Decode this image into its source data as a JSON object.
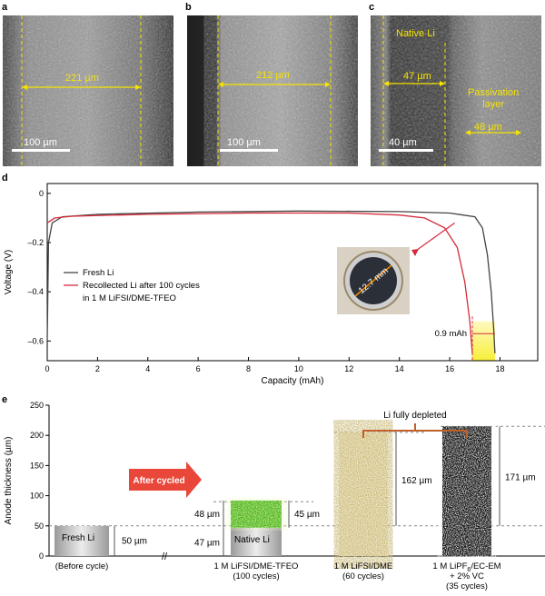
{
  "panels": {
    "a": {
      "label": "a",
      "thickness": "221 µm",
      "scale": "100 µm"
    },
    "b": {
      "label": "b",
      "thickness": "212 µm",
      "scale": "100 µm"
    },
    "c": {
      "label": "c",
      "native": "Native Li",
      "thickness": "47 µm",
      "passivation": [
        "Passivation",
        "layer"
      ],
      "passivation_thickness": "48 µm",
      "scale": "40 µm"
    },
    "d": {
      "label": "d"
    },
    "e": {
      "label": "e"
    }
  },
  "chart_data": [
    {
      "type": "line",
      "panel": "d",
      "xlabel": "Capacity (mAh)",
      "ylabel": "Voltage (V)",
      "xlim": [
        0,
        19.5
      ],
      "ylim": [
        -0.68,
        0.04
      ],
      "xticks": [
        0,
        2,
        4,
        6,
        8,
        10,
        12,
        14,
        16,
        18
      ],
      "yticks": [
        0,
        -0.2,
        -0.4,
        -0.6
      ],
      "ytick_labels": [
        "0",
        "–0.2",
        "–0.4",
        "–0.6"
      ],
      "legend": "middle-left",
      "series": [
        {
          "name": "Fresh Li",
          "color": "#444444",
          "points": [
            [
              0,
              -0.6
            ],
            [
              0.05,
              -0.2
            ],
            [
              0.2,
              -0.12
            ],
            [
              0.6,
              -0.095
            ],
            [
              2,
              -0.085
            ],
            [
              6,
              -0.076
            ],
            [
              10,
              -0.072
            ],
            [
              14,
              -0.074
            ],
            [
              16,
              -0.08
            ],
            [
              17,
              -0.095
            ],
            [
              17.3,
              -0.14
            ],
            [
              17.5,
              -0.25
            ],
            [
              17.65,
              -0.4
            ],
            [
              17.75,
              -0.55
            ],
            [
              17.8,
              -0.65
            ]
          ]
        },
        {
          "name": "Recollected Li after 100 cycles",
          "name_line2": "in 1 M LiFSI/DME-TFEO",
          "color": "#d62a3a",
          "points": [
            [
              0,
              -0.12
            ],
            [
              0.3,
              -0.1
            ],
            [
              1,
              -0.093
            ],
            [
              4,
              -0.085
            ],
            [
              8,
              -0.08
            ],
            [
              12,
              -0.08
            ],
            [
              14,
              -0.088
            ],
            [
              15,
              -0.1
            ],
            [
              15.8,
              -0.14
            ],
            [
              16.3,
              -0.22
            ],
            [
              16.6,
              -0.36
            ],
            [
              16.8,
              -0.52
            ],
            [
              16.9,
              -0.65
            ]
          ]
        }
      ],
      "annotations": {
        "inset": "12.7 mm",
        "delta": "0.9 mAh"
      }
    },
    {
      "type": "bar",
      "panel": "e",
      "ylabel": "Anode thickness (µm)",
      "ylim": [
        0,
        250
      ],
      "yticks": [
        0,
        50,
        100,
        150,
        200,
        250
      ],
      "reference_lines": [
        50,
        90,
        205,
        215
      ],
      "bars": [
        {
          "label": [
            "(Before cycle)"
          ],
          "inside": "Fresh Li",
          "base": 50,
          "top": 0,
          "dim": "50 µm"
        },
        {
          "label": [
            "1 M LiFSI/DME-TFEO",
            "(100 cycles)"
          ],
          "inside": "Native Li",
          "base": 47,
          "top": 45,
          "dims": [
            "48 µm",
            "47 µm",
            "45 µm"
          ]
        },
        {
          "label": [
            "1 M LiFSI/DME",
            "(60 cycles)"
          ],
          "base": 0,
          "top": 205,
          "dim": "162 µm"
        },
        {
          "label": [
            "1 M LiPF",
            "/EC-EM",
            "+ 2% VC",
            "(35 cycles)"
          ],
          "base": 0,
          "top": 215,
          "dim": "171 µm"
        }
      ],
      "annotations": {
        "arrow": "After cycled",
        "bracket": "Li fully depleted"
      }
    }
  ]
}
